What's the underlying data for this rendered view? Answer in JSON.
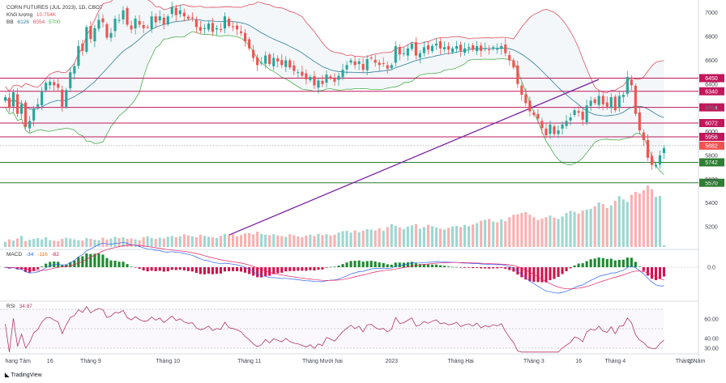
{
  "header": {
    "symbol": "CORN FUTURES (JUL 2023), 1D, CBOT",
    "volume_label": "Khối lượng",
    "volume_value": "10.754K",
    "bb_label": "BB",
    "bb_values": [
      "6126",
      "6554",
      "5700"
    ]
  },
  "macd": {
    "label": "MACD",
    "values": [
      "-34",
      "-116",
      "-82"
    ]
  },
  "rsi": {
    "label": "RSI",
    "value": "34.87"
  },
  "footer": {
    "brand": "TradingView"
  },
  "colors": {
    "up": "#26a69a",
    "down": "#ef5350",
    "bb_upper": "#e0505f",
    "bb_lower": "#4caf50",
    "bb_basis": "#2e7d9a",
    "resistance": "#c2185b",
    "support": "#2e7d32",
    "trend": "#7b1fa2",
    "macd_pos": "#1b8a2e",
    "macd_neg": "#d0144a",
    "rsi": "#b5356b"
  },
  "chart_data": [
    {
      "type": "candlestick",
      "title": "CORN FUTURES (JUL 2023), 1D, CBOT",
      "y_ticks": [
        7000,
        6800,
        6600,
        6400,
        6200,
        6000,
        5800,
        5600,
        5400,
        5200
      ],
      "ylim": [
        5030,
        7080
      ],
      "x_ticks": [
        "hang Tám",
        "16",
        "Tháng 9",
        "Tháng 10",
        "Tháng 11",
        "Tháng Mười hai",
        "2023",
        "Tháng Hai",
        "Tháng 3",
        "16",
        "Tháng 4",
        "Tháng Năm",
        "16"
      ],
      "horizontal_levels": [
        {
          "value": 6450,
          "label": "6450",
          "role": "resistance"
        },
        {
          "value": 6340,
          "label": "6340",
          "role": "resistance"
        },
        {
          "value": 6204,
          "label": "6204",
          "role": "resistance"
        },
        {
          "value": 6072,
          "label": "6072",
          "role": "resistance"
        },
        {
          "value": 5956,
          "label": "5956",
          "role": "resistance"
        },
        {
          "value": 5742,
          "label": "5742",
          "role": "support"
        },
        {
          "value": 5570,
          "label": "5570",
          "role": "support"
        }
      ],
      "last_price": {
        "value": 5882,
        "label": "5882"
      },
      "trend_line": {
        "from": {
          "x": 55,
          "y": 5130
        },
        "to": {
          "x": 146,
          "y": 6440
        }
      },
      "close_series": [
        6290,
        6200,
        6330,
        6150,
        6230,
        6040,
        6090,
        6190,
        6230,
        6340,
        6410,
        6420,
        6390,
        6370,
        6210,
        6350,
        6500,
        6550,
        6720,
        6680,
        6880,
        6780,
        6870,
        6940,
        6920,
        6790,
        6830,
        6950,
        6940,
        7020,
        6900,
        6860,
        6950,
        6900,
        6870,
        6880,
        6970,
        6920,
        6970,
        6900,
        6970,
        7050,
        6980,
        7020,
        6970,
        6950,
        6960,
        6880,
        6850,
        6870,
        6910,
        6840,
        6870,
        6860,
        6970,
        6890,
        6880,
        6860,
        6830,
        6760,
        6700,
        6620,
        6560,
        6580,
        6640,
        6570,
        6620,
        6590,
        6560,
        6600,
        6540,
        6510,
        6500,
        6470,
        6440,
        6460,
        6390,
        6430,
        6400,
        6480,
        6450,
        6420,
        6470,
        6520,
        6560,
        6600,
        6560,
        6590,
        6520,
        6610,
        6620,
        6580,
        6560,
        6570,
        6530,
        6560,
        6720,
        6650,
        6660,
        6700,
        6740,
        6640,
        6660,
        6710,
        6690,
        6720,
        6740,
        6700,
        6710,
        6690,
        6700,
        6720,
        6680,
        6700,
        6710,
        6690,
        6720,
        6680,
        6700,
        6690,
        6710,
        6700,
        6720,
        6660,
        6600,
        6540,
        6400,
        6310,
        6240,
        6170,
        6140,
        6110,
        6030,
        5970,
        6060,
        5980,
        6010,
        6060,
        6090,
        6120,
        6180,
        6160,
        6100,
        6220,
        6260,
        6240,
        6300,
        6230,
        6210,
        6290,
        6180,
        6300,
        6310,
        6460,
        6390,
        6150,
        6010,
        5930,
        5780,
        5720,
        5720,
        5800,
        5860
      ],
      "volume_series": [
        120,
        180,
        150,
        200,
        260,
        140,
        170,
        190,
        210,
        180,
        230,
        160,
        150,
        140,
        190,
        220,
        200,
        180,
        160,
        150,
        210,
        190,
        170,
        160,
        220,
        180,
        200,
        240,
        210,
        230,
        190,
        200,
        180,
        160,
        230,
        250,
        210,
        190,
        220,
        200,
        240,
        260,
        230,
        250,
        300,
        270,
        250,
        230,
        290,
        260,
        240,
        230,
        210,
        260,
        310,
        270,
        300,
        250,
        280,
        320,
        330,
        300,
        360,
        310,
        290,
        280,
        300,
        270,
        260,
        240,
        300,
        280,
        250,
        230,
        270,
        290,
        260,
        310,
        280,
        300,
        270,
        290,
        340,
        370,
        380,
        340,
        390,
        350,
        380,
        420,
        410,
        390,
        440,
        380,
        470,
        540,
        500,
        460,
        420,
        480,
        510,
        540,
        430,
        470,
        520,
        490,
        460,
        430,
        410,
        450,
        480,
        500,
        470,
        520,
        490,
        530,
        560,
        620,
        640,
        660,
        600,
        580,
        650,
        610,
        700,
        760,
        770,
        800,
        820,
        760,
        700,
        640,
        670,
        700,
        740,
        690,
        660,
        720,
        800,
        850,
        830,
        790,
        860,
        880,
        900,
        960,
        1050,
        1010,
        920,
        980,
        1090,
        1200,
        1120,
        1060,
        1230,
        1300,
        1260,
        1340,
        1450,
        1360,
        1180,
        1200,
        40
      ],
      "macd": {
        "ylim": [
          -100,
          45
        ],
        "y_ticks": [
          0
        ]
      },
      "rsi": {
        "ylim": [
          25,
          75
        ],
        "y_ticks": [
          60,
          40,
          30
        ],
        "levels": [
          70,
          50,
          30
        ]
      }
    }
  ]
}
